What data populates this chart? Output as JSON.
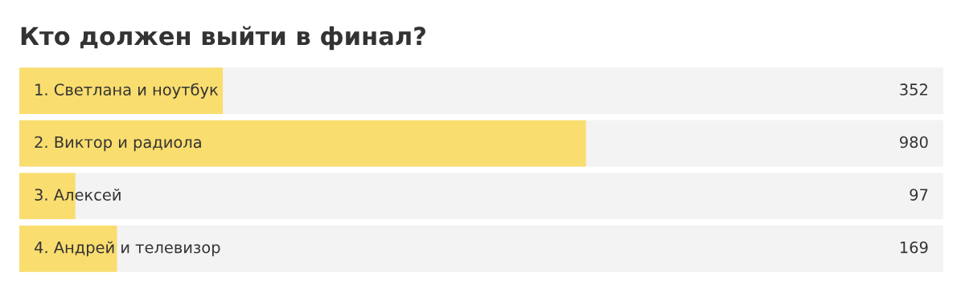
{
  "chart_data": {
    "type": "bar",
    "orientation": "horizontal",
    "title": "Кто должен выйти в финал?",
    "categories": [
      "1. Светлана и ноутбук",
      "2. Виктор и радиола",
      "3. Алексей",
      "4. Андрей и телевизор"
    ],
    "values": [
      352,
      980,
      97,
      169
    ],
    "color": "#f9dd6f",
    "xlim": [
      0,
      1598
    ],
    "data_labels": true
  }
}
